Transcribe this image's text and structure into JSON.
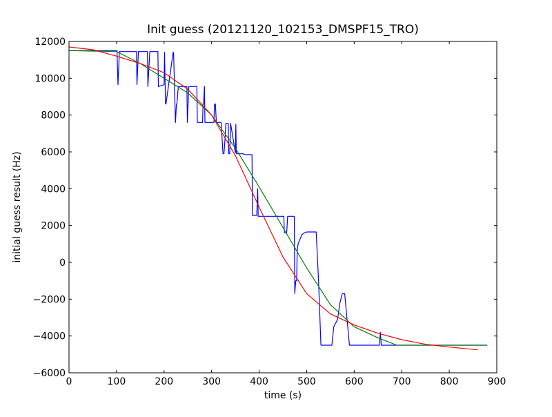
{
  "chart_data": {
    "type": "line",
    "title": "Init guess (20121120_102153_DMSPF15_TRO)",
    "xlabel": "time (s)",
    "ylabel": "initial guess result (Hz)",
    "xlim": [
      0,
      900
    ],
    "ylim": [
      -6000,
      12000
    ],
    "xticks": [
      0,
      100,
      200,
      300,
      400,
      500,
      600,
      700,
      800,
      900
    ],
    "yticks": [
      -6000,
      -4000,
      -2000,
      0,
      2000,
      4000,
      6000,
      8000,
      10000,
      12000
    ],
    "grid": false,
    "legend": "none",
    "series": [
      {
        "color": "#0000ff",
        "x": [
          0,
          101,
          103,
          106,
          142,
          143,
          146,
          165,
          166,
          170,
          187,
          188,
          200,
          201,
          203,
          204,
          219,
          220,
          224,
          226,
          227,
          230,
          232,
          248,
          249,
          252,
          269,
          270,
          281,
          282,
          283,
          285,
          286,
          305,
          306,
          308,
          310,
          320,
          324,
          326,
          328,
          330,
          335,
          336,
          338,
          340,
          350,
          351,
          352,
          367,
          368,
          370,
          385,
          386,
          389,
          392,
          395,
          397,
          398,
          400,
          440,
          441,
          447,
          452,
          453,
          458,
          460,
          474,
          475,
          477,
          479,
          480,
          482,
          485,
          490,
          495,
          500,
          515,
          520,
          525,
          530,
          545,
          549,
          553,
          557,
          565,
          570,
          575,
          580,
          590,
          595,
          596,
          597,
          640,
          653,
          655,
          657,
          659,
          661,
          665,
          680,
          880
        ],
        "y": [
          11500,
          11500,
          9650,
          11450,
          11450,
          9650,
          11450,
          11450,
          9550,
          11450,
          11450,
          9550,
          9650,
          11400,
          8600,
          8600,
          11400,
          11400,
          7600,
          8600,
          8600,
          9550,
          9550,
          9550,
          7600,
          9550,
          9550,
          7600,
          7600,
          8600,
          8600,
          9550,
          7600,
          7600,
          8600,
          8600,
          7600,
          7600,
          5900,
          5900,
          6600,
          7550,
          7550,
          5900,
          5900,
          7550,
          5950,
          7500,
          5900,
          5900,
          5850,
          5850,
          5850,
          2550,
          2550,
          2550,
          2550,
          4000,
          2500,
          2500,
          2500,
          2500,
          2500,
          2500,
          1600,
          1600,
          2500,
          2500,
          -1700,
          -1000,
          -1000,
          600,
          1000,
          1200,
          1500,
          1600,
          1650,
          1650,
          1650,
          -1000,
          -4500,
          -4500,
          -4500,
          -4500,
          -3500,
          -3100,
          -2200,
          -1700,
          -1700,
          -4500,
          -4500,
          -4500,
          -4500,
          -4500,
          -4500,
          -3800,
          -4500,
          -4500,
          -4500,
          -4500,
          -4500,
          -4500
        ]
      },
      {
        "color": "#008000",
        "x": [
          0,
          100,
          150,
          200,
          250,
          300,
          350,
          400,
          450,
          500,
          550,
          600,
          650,
          690,
          880
        ],
        "y": [
          11500,
          11450,
          10800,
          10000,
          9200,
          8000,
          6200,
          4100,
          1900,
          -300,
          -2300,
          -3500,
          -4100,
          -4500,
          -4500
        ]
      },
      {
        "color": "#ff0000",
        "x": [
          0,
          50,
          100,
          150,
          200,
          250,
          300,
          350,
          400,
          450,
          500,
          550,
          600,
          650,
          700,
          750,
          800,
          860
        ],
        "y": [
          11700,
          11550,
          11200,
          10800,
          10300,
          9400,
          8000,
          5800,
          3000,
          300,
          -1700,
          -2800,
          -3400,
          -3850,
          -4200,
          -4450,
          -4600,
          -4750
        ]
      }
    ]
  }
}
